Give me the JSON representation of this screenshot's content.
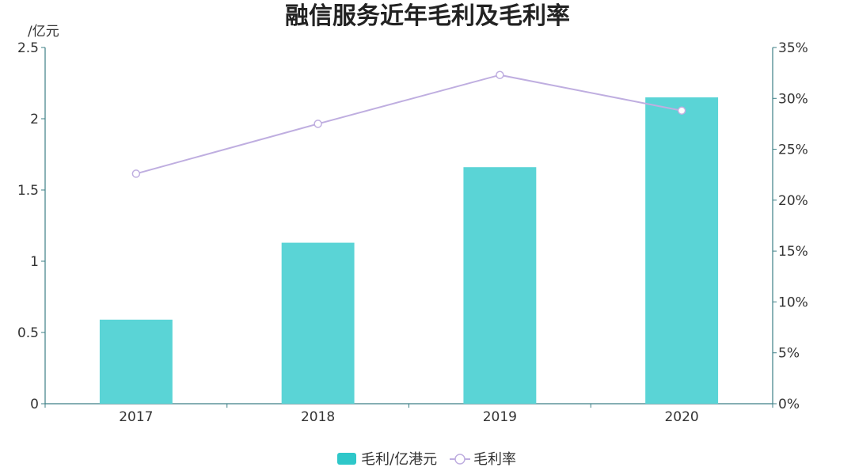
{
  "chart_data": {
    "type": "bar",
    "title": "融信服务近年毛利及毛利率",
    "y_unit_label": "/亿元",
    "categories": [
      "2017",
      "2018",
      "2019",
      "2020"
    ],
    "series": [
      {
        "name": "毛利/亿港元",
        "type": "bar",
        "axis": "left",
        "values": [
          0.59,
          1.13,
          1.66,
          2.15
        ],
        "color": "#5ad4d6"
      },
      {
        "name": "毛利率",
        "type": "line",
        "axis": "right",
        "values": [
          22.6,
          27.5,
          32.3,
          28.8
        ],
        "color": "#bfaee0"
      }
    ],
    "y_left": {
      "range": [
        0,
        2.5
      ],
      "ticks": [
        "0",
        "0.5",
        "1",
        "1.5",
        "2",
        "2.5"
      ]
    },
    "y_right": {
      "range": [
        0,
        35
      ],
      "ticks": [
        "0%",
        "5%",
        "10%",
        "15%",
        "20%",
        "25%",
        "30%",
        "35%"
      ]
    },
    "legend_position": "bottom-center",
    "grid": false,
    "axis_color": "#3d7f86",
    "legend_bar_color": "#2ec7c9"
  }
}
